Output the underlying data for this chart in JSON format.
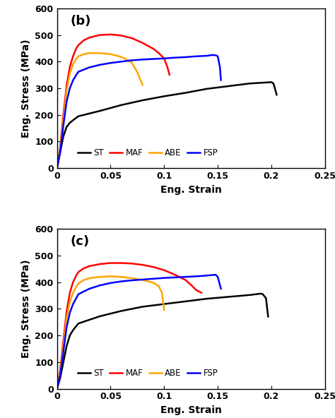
{
  "panel_b": {
    "label": "(b)",
    "ST": {
      "color": "#000000",
      "points": [
        [
          0,
          0
        ],
        [
          0.003,
          60
        ],
        [
          0.006,
          120
        ],
        [
          0.009,
          155
        ],
        [
          0.012,
          170
        ],
        [
          0.015,
          180
        ],
        [
          0.02,
          195
        ],
        [
          0.04,
          215
        ],
        [
          0.06,
          237
        ],
        [
          0.08,
          255
        ],
        [
          0.1,
          270
        ],
        [
          0.12,
          283
        ],
        [
          0.14,
          298
        ],
        [
          0.16,
          308
        ],
        [
          0.18,
          318
        ],
        [
          0.2,
          323
        ],
        [
          0.202,
          318
        ],
        [
          0.205,
          275
        ]
      ]
    },
    "MAF": {
      "color": "#FF0000",
      "points": [
        [
          0,
          0
        ],
        [
          0.003,
          80
        ],
        [
          0.006,
          200
        ],
        [
          0.009,
          310
        ],
        [
          0.012,
          380
        ],
        [
          0.015,
          420
        ],
        [
          0.018,
          450
        ],
        [
          0.02,
          462
        ],
        [
          0.025,
          480
        ],
        [
          0.03,
          490
        ],
        [
          0.04,
          500
        ],
        [
          0.05,
          502
        ],
        [
          0.06,
          498
        ],
        [
          0.07,
          488
        ],
        [
          0.08,
          470
        ],
        [
          0.09,
          448
        ],
        [
          0.095,
          432
        ],
        [
          0.1,
          412
        ],
        [
          0.103,
          380
        ],
        [
          0.105,
          350
        ]
      ]
    },
    "ABE": {
      "color": "#FFA500",
      "points": [
        [
          0,
          0
        ],
        [
          0.003,
          70
        ],
        [
          0.006,
          180
        ],
        [
          0.009,
          290
        ],
        [
          0.012,
          355
        ],
        [
          0.015,
          390
        ],
        [
          0.018,
          410
        ],
        [
          0.02,
          420
        ],
        [
          0.025,
          428
        ],
        [
          0.03,
          432
        ],
        [
          0.04,
          432
        ],
        [
          0.05,
          428
        ],
        [
          0.06,
          418
        ],
        [
          0.065,
          408
        ],
        [
          0.07,
          395
        ],
        [
          0.075,
          360
        ],
        [
          0.078,
          330
        ],
        [
          0.08,
          312
        ]
      ]
    },
    "FSP": {
      "color": "#0000FF",
      "points": [
        [
          0,
          0
        ],
        [
          0.003,
          60
        ],
        [
          0.006,
          160
        ],
        [
          0.009,
          250
        ],
        [
          0.012,
          300
        ],
        [
          0.015,
          330
        ],
        [
          0.018,
          350
        ],
        [
          0.02,
          362
        ],
        [
          0.03,
          378
        ],
        [
          0.04,
          388
        ],
        [
          0.05,
          395
        ],
        [
          0.06,
          400
        ],
        [
          0.07,
          405
        ],
        [
          0.08,
          408
        ],
        [
          0.09,
          410
        ],
        [
          0.1,
          412
        ],
        [
          0.11,
          415
        ],
        [
          0.12,
          417
        ],
        [
          0.13,
          420
        ],
        [
          0.14,
          422
        ],
        [
          0.145,
          425
        ],
        [
          0.148,
          424
        ],
        [
          0.15,
          420
        ],
        [
          0.152,
          380
        ],
        [
          0.153,
          330
        ]
      ]
    }
  },
  "panel_c": {
    "label": "(c)",
    "ST": {
      "color": "#000000",
      "points": [
        [
          0,
          0
        ],
        [
          0.003,
          40
        ],
        [
          0.006,
          100
        ],
        [
          0.009,
          160
        ],
        [
          0.012,
          200
        ],
        [
          0.015,
          220
        ],
        [
          0.018,
          235
        ],
        [
          0.02,
          245
        ],
        [
          0.04,
          272
        ],
        [
          0.06,
          292
        ],
        [
          0.08,
          308
        ],
        [
          0.1,
          318
        ],
        [
          0.12,
          328
        ],
        [
          0.14,
          338
        ],
        [
          0.16,
          345
        ],
        [
          0.18,
          352
        ],
        [
          0.19,
          357
        ],
        [
          0.192,
          355
        ],
        [
          0.195,
          340
        ],
        [
          0.197,
          270
        ]
      ]
    },
    "MAF": {
      "color": "#FF0000",
      "points": [
        [
          0,
          0
        ],
        [
          0.003,
          70
        ],
        [
          0.006,
          180
        ],
        [
          0.009,
          290
        ],
        [
          0.012,
          360
        ],
        [
          0.015,
          400
        ],
        [
          0.018,
          425
        ],
        [
          0.02,
          438
        ],
        [
          0.025,
          452
        ],
        [
          0.03,
          460
        ],
        [
          0.04,
          468
        ],
        [
          0.05,
          472
        ],
        [
          0.06,
          472
        ],
        [
          0.07,
          470
        ],
        [
          0.08,
          465
        ],
        [
          0.09,
          457
        ],
        [
          0.1,
          445
        ],
        [
          0.11,
          428
        ],
        [
          0.12,
          408
        ],
        [
          0.125,
          390
        ],
        [
          0.13,
          370
        ],
        [
          0.135,
          360
        ]
      ]
    },
    "ABE": {
      "color": "#FFA500",
      "points": [
        [
          0,
          0
        ],
        [
          0.003,
          60
        ],
        [
          0.006,
          160
        ],
        [
          0.009,
          265
        ],
        [
          0.012,
          325
        ],
        [
          0.015,
          360
        ],
        [
          0.018,
          383
        ],
        [
          0.02,
          395
        ],
        [
          0.025,
          408
        ],
        [
          0.03,
          415
        ],
        [
          0.04,
          420
        ],
        [
          0.05,
          422
        ],
        [
          0.06,
          420
        ],
        [
          0.07,
          415
        ],
        [
          0.08,
          408
        ],
        [
          0.09,
          398
        ],
        [
          0.095,
          385
        ],
        [
          0.098,
          360
        ],
        [
          0.1,
          295
        ]
      ]
    },
    "FSP": {
      "color": "#0000FF",
      "points": [
        [
          0,
          0
        ],
        [
          0.003,
          50
        ],
        [
          0.006,
          140
        ],
        [
          0.009,
          230
        ],
        [
          0.012,
          285
        ],
        [
          0.015,
          318
        ],
        [
          0.018,
          340
        ],
        [
          0.02,
          355
        ],
        [
          0.03,
          375
        ],
        [
          0.04,
          388
        ],
        [
          0.05,
          397
        ],
        [
          0.06,
          403
        ],
        [
          0.07,
          407
        ],
        [
          0.08,
          410
        ],
        [
          0.09,
          413
        ],
        [
          0.1,
          416
        ],
        [
          0.11,
          418
        ],
        [
          0.12,
          420
        ],
        [
          0.13,
          422
        ],
        [
          0.14,
          425
        ],
        [
          0.148,
          428
        ],
        [
          0.15,
          420
        ],
        [
          0.152,
          390
        ],
        [
          0.153,
          375
        ]
      ]
    }
  },
  "xlim": [
    0,
    0.25
  ],
  "ylim": [
    0,
    600
  ],
  "xticks": [
    0,
    0.05,
    0.1,
    0.15,
    0.2,
    0.25
  ],
  "yticks": [
    0,
    100,
    200,
    300,
    400,
    500,
    600
  ],
  "xlabel": "Eng. Strain",
  "ylabel": "Eng. Stress (MPa)",
  "legend_labels": [
    "ST",
    "MAF",
    "ABE",
    "FSP"
  ],
  "legend_colors": [
    "#000000",
    "#FF0000",
    "#FFA500",
    "#0000FF"
  ],
  "linewidth": 1.8
}
